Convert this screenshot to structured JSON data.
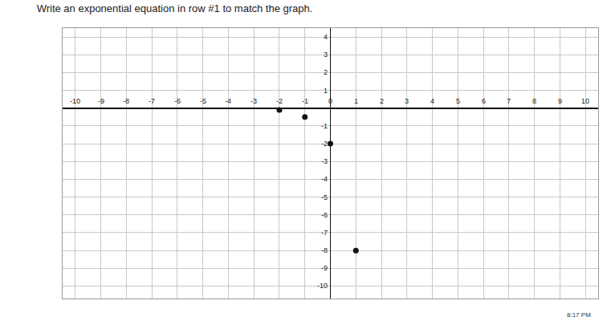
{
  "chart_data": {
    "type": "scatter",
    "title": "Write an exponential equation in row #1 to match the graph.",
    "x": [
      -2,
      -1,
      0,
      1
    ],
    "values": [
      -0.1,
      -0.5,
      -2,
      -8
    ],
    "color": "#111111",
    "marker": "circle",
    "xlim": [
      -10.5,
      10.5
    ],
    "ylim": [
      -10.7,
      4.5
    ],
    "xticks": [
      -10,
      -9,
      -8,
      -7,
      -6,
      -5,
      -4,
      -3,
      -2,
      -1,
      0,
      1,
      2,
      3,
      4,
      5,
      6,
      7,
      8,
      9,
      10
    ],
    "yticks": [
      -10,
      -9,
      -8,
      -7,
      -6,
      -5,
      -4,
      -3,
      -2,
      -1,
      1,
      2,
      3,
      4
    ],
    "grid": true,
    "annotations": [
      {
        "text": "8:17 PM"
      }
    ]
  }
}
